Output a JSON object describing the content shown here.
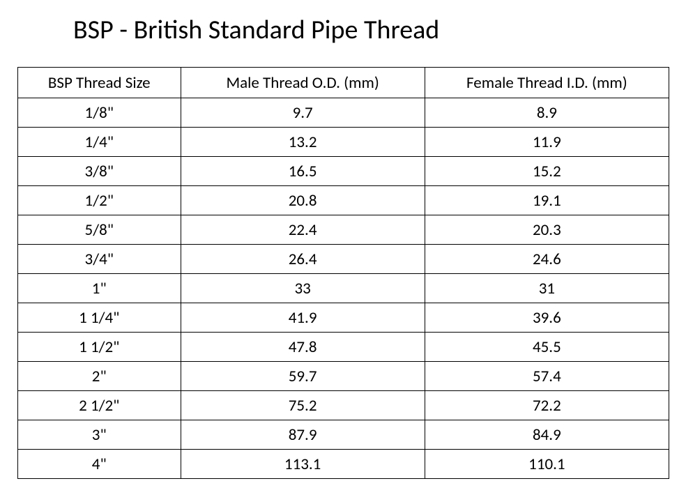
{
  "title": "BSP - British Standard Pipe Thread",
  "table": {
    "type": "table",
    "background_color": "#ffffff",
    "border_color": "#000000",
    "border_width": 1.5,
    "text_color": "#000000",
    "header_fontsize": 23,
    "cell_fontsize": 23,
    "title_fontsize": 38,
    "columns": [
      {
        "label": "BSP Thread Size",
        "width": "25%",
        "align": "center"
      },
      {
        "label": "Male Thread O.D. (mm)",
        "width": "37.5%",
        "align": "center"
      },
      {
        "label": "Female Thread I.D. (mm)",
        "width": "37.5%",
        "align": "center"
      }
    ],
    "rows": [
      {
        "size": "1/8\"",
        "male_od": "9.7",
        "female_id": "8.9"
      },
      {
        "size": "1/4\"",
        "male_od": "13.2",
        "female_id": "11.9"
      },
      {
        "size": "3/8\"",
        "male_od": "16.5",
        "female_id": "15.2"
      },
      {
        "size": "1/2\"",
        "male_od": "20.8",
        "female_id": "19.1"
      },
      {
        "size": "5/8\"",
        "male_od": "22.4",
        "female_id": "20.3"
      },
      {
        "size": "3/4\"",
        "male_od": "26.4",
        "female_id": "24.6"
      },
      {
        "size": "1\"",
        "male_od": "33",
        "female_id": "31"
      },
      {
        "size": "1 1/4\"",
        "male_od": "41.9",
        "female_id": "39.6"
      },
      {
        "size": "1 1/2\"",
        "male_od": "47.8",
        "female_id": "45.5"
      },
      {
        "size": "2\"",
        "male_od": "59.7",
        "female_id": "57.4"
      },
      {
        "size": "2 1/2\"",
        "male_od": "75.2",
        "female_id": "72.2"
      },
      {
        "size": "3\"",
        "male_od": "87.9",
        "female_id": "84.9"
      },
      {
        "size": "4\"",
        "male_od": "113.1",
        "female_id": "110.1"
      }
    ]
  }
}
